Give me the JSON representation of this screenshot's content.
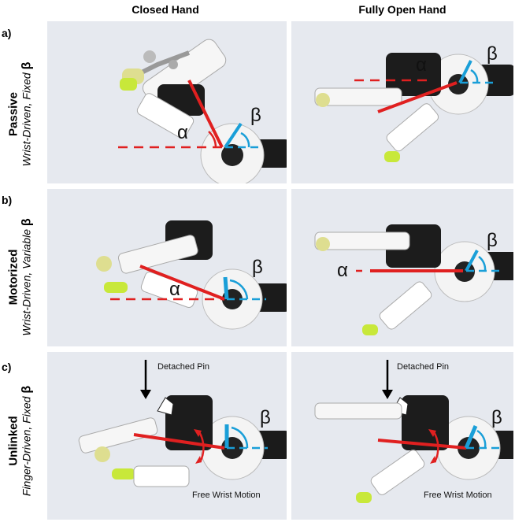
{
  "columns": [
    "Closed Hand",
    "Fully Open Hand"
  ],
  "rows": [
    {
      "letter": "a)",
      "title": "Passive",
      "subtitle": "Wrist-Driven, Fixed",
      "beta": "β"
    },
    {
      "letter": "b)",
      "title": "Motorized",
      "subtitle": "Wrist-Driven, Variable",
      "beta": "β"
    },
    {
      "letter": "c)",
      "title": "Unlinked",
      "subtitle": "Finger-Driven, Fixed",
      "beta": "β"
    }
  ],
  "symbols": {
    "alpha": "α",
    "beta": "β"
  },
  "annotations": {
    "detached_pin": "Detached Pin",
    "free_wrist": "Free Wrist Motion"
  },
  "colors": {
    "alpha_line": "#e02020",
    "beta_line": "#1a9fd8",
    "background": "#e6e9ef"
  }
}
